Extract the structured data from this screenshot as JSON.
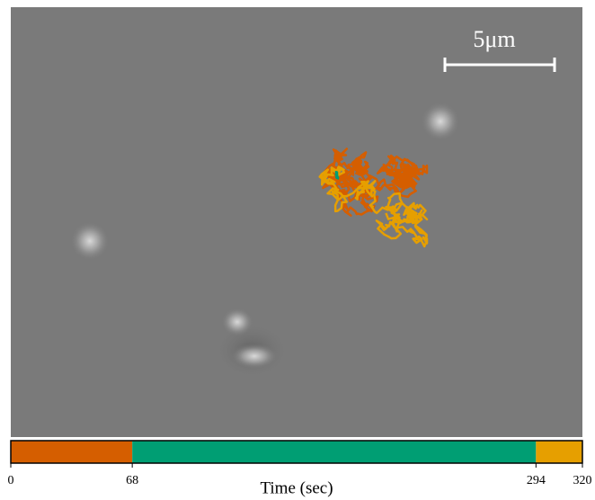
{
  "image": {
    "scale_bar_label": "5μm"
  },
  "chart_data": {
    "type": "timeline",
    "xlabel": "Time (sec)",
    "values": [
      68,
      226,
      26
    ],
    "colors": [
      "#d55e00",
      "#009e73",
      "#e69f00"
    ],
    "xlim": [
      0,
      320
    ],
    "xticks": [
      0,
      68,
      294,
      320
    ]
  }
}
